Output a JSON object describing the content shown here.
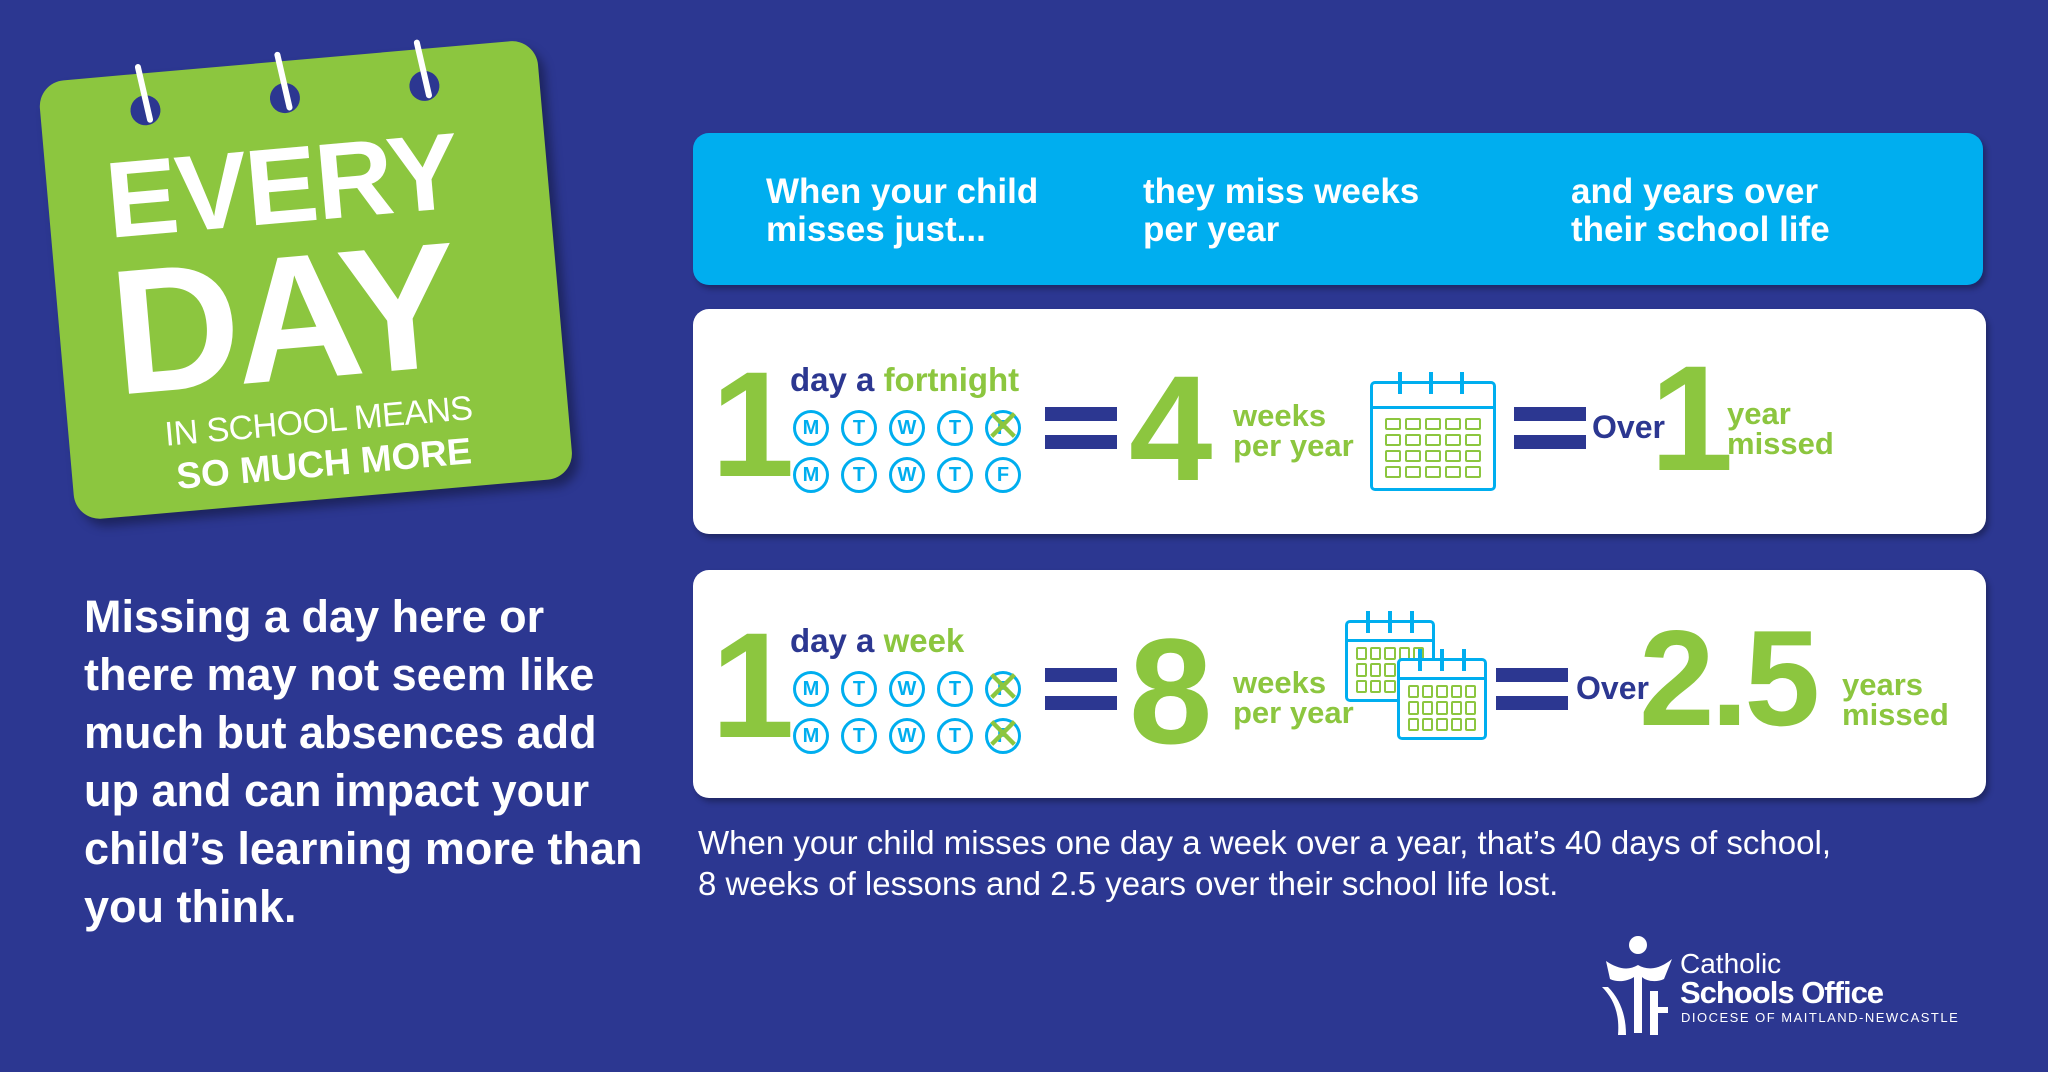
{
  "badge": {
    "line1": "EVERY",
    "line2": "DAY",
    "line3": "IN SCHOOL MEANS",
    "line4": "SO MUCH MORE"
  },
  "intro": "Missing a day here or there may not seem like much but absences add up and can impact your child’s learning more than you think.",
  "header": {
    "col1": "When your child misses just...",
    "col2": "they miss weeks per year",
    "col3": "and years over their school life"
  },
  "rows": [
    {
      "number": "1",
      "freq_prefix": "day a ",
      "freq_highlight": "fortnight",
      "days_row1": [
        "M",
        "T",
        "W",
        "T",
        "F"
      ],
      "days_row2": [
        "M",
        "T",
        "W",
        "T",
        "F"
      ],
      "weeks": "4",
      "weeks_label": "weeks per year",
      "over": "Over",
      "years": "1",
      "years_label": "year missed"
    },
    {
      "number": "1",
      "freq_prefix": "day a ",
      "freq_highlight": "week",
      "days_row1": [
        "M",
        "T",
        "W",
        "T",
        "F"
      ],
      "days_row2": [
        "M",
        "T",
        "W",
        "T",
        "F"
      ],
      "weeks": "8",
      "weeks_label": "weeks per year",
      "over": "Over",
      "years": "2.5",
      "years_label": "years missed"
    }
  ],
  "footnote": {
    "line1": "When your child misses one day a week over a year, that’s 40 days of school,",
    "line2": "8 weeks of lessons and 2.5 years over their school life lost."
  },
  "logo": {
    "line1": "Catholic",
    "line2": "Schools Office",
    "line3": "DIOCESE OF MAITLAND-NEWCASTLE"
  },
  "colors": {
    "background": "#2c3791",
    "green": "#8cc63f",
    "cyan": "#00aeef",
    "white": "#ffffff"
  }
}
